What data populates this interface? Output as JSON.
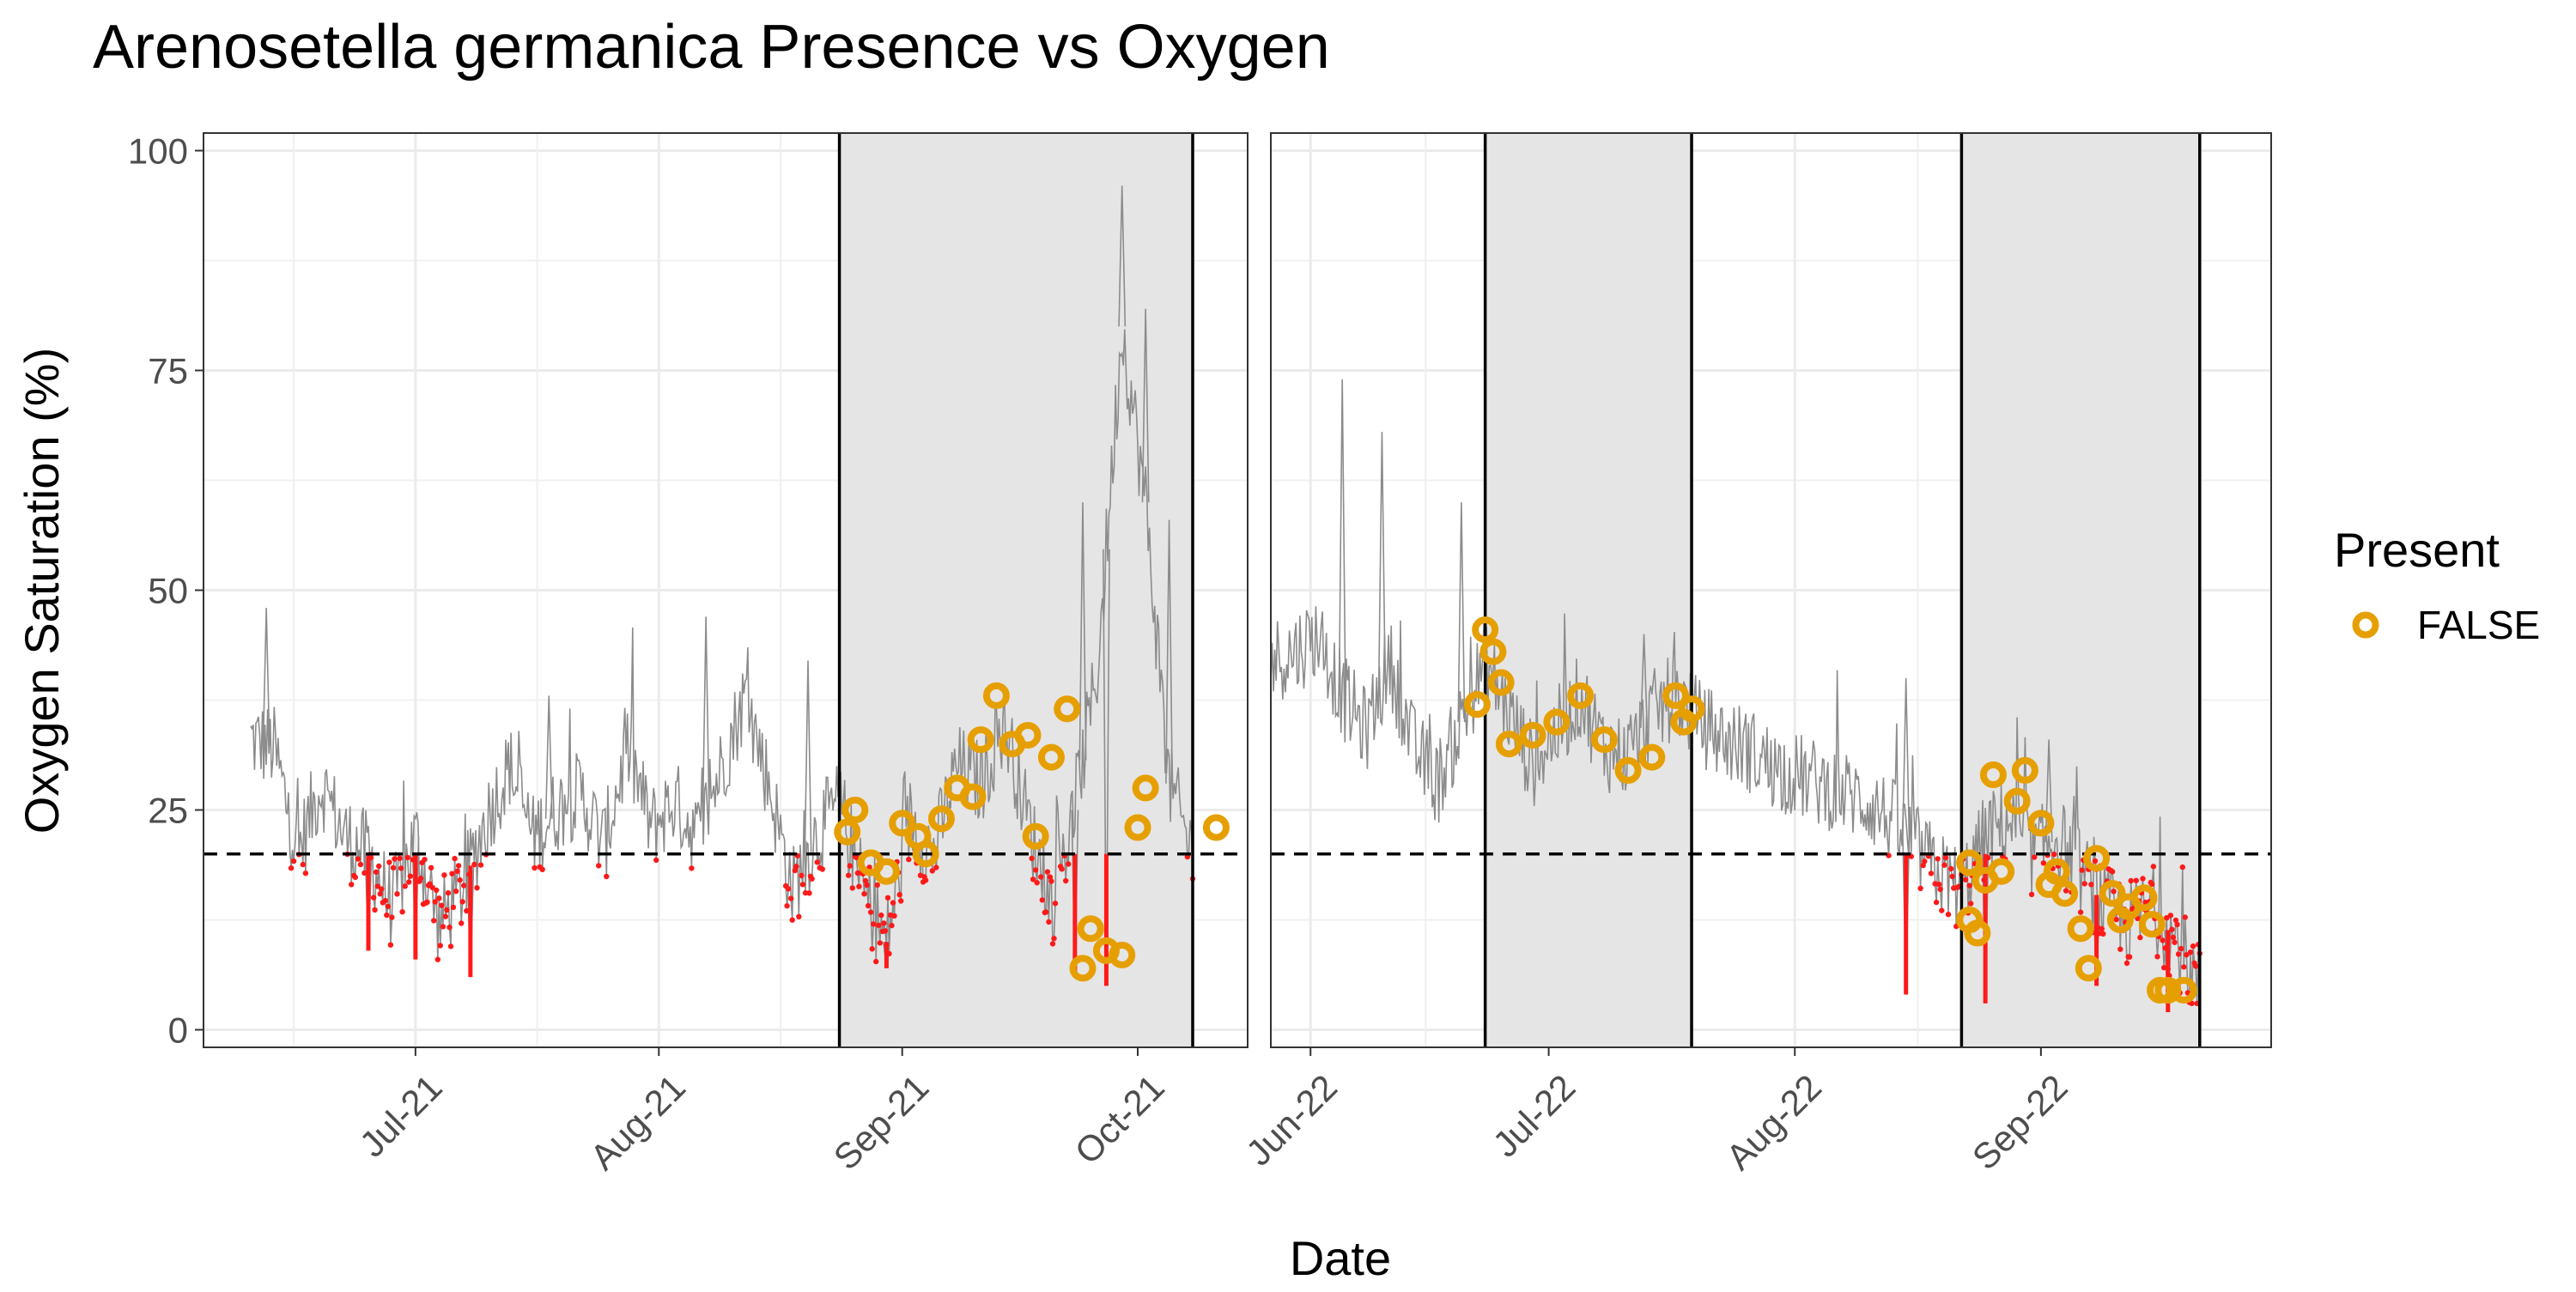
{
  "chart_data": {
    "type": "line",
    "title": "Arenosetella germanica Presence vs Oxygen",
    "xlabel": "Date",
    "ylabel": "Oxygen Saturation (%)",
    "ylim": [
      -2,
      102
    ],
    "y_ticks": [
      0,
      25,
      50,
      75,
      100
    ],
    "threshold": 20,
    "grid": true,
    "colors": {
      "line": "#8c8c8c",
      "below_threshold": "#ff1a1a",
      "points": "#e69f00",
      "shade": "#e5e5e5",
      "threshold_line": "#000000"
    },
    "legend": {
      "title": "Present",
      "position": "right",
      "entries": [
        {
          "label": "FALSE",
          "color": "#e69f00"
        }
      ]
    },
    "panels": [
      {
        "xlim": [
          "2021-06-04",
          "2021-10-15"
        ],
        "x_ticks": [
          "2021-07-01",
          "2021-08-01",
          "2021-09-01",
          "2021-10-01"
        ],
        "x_tick_labels": [
          "Jul-21",
          "Aug-21",
          "Sep-21",
          "Oct-21"
        ],
        "shaded": [
          [
            "2021-08-24",
            "2021-10-08"
          ]
        ],
        "series": {
          "x": [
            "2021-06-10",
            "2021-06-13",
            "2021-06-16",
            "2021-06-19",
            "2021-06-22",
            "2021-06-25",
            "2021-06-28",
            "2021-07-01",
            "2021-07-04",
            "2021-07-07",
            "2021-07-10",
            "2021-07-13",
            "2021-07-16",
            "2021-07-19",
            "2021-07-22",
            "2021-07-25",
            "2021-07-28",
            "2021-07-31",
            "2021-08-03",
            "2021-08-06",
            "2021-08-09",
            "2021-08-12",
            "2021-08-15",
            "2021-08-18",
            "2021-08-21",
            "2021-08-24",
            "2021-08-27",
            "2021-08-30",
            "2021-09-02",
            "2021-09-05",
            "2021-09-08",
            "2021-09-11",
            "2021-09-14",
            "2021-09-17",
            "2021-09-20",
            "2021-09-23",
            "2021-09-26",
            "2021-09-29",
            "2021-10-02",
            "2021-10-05",
            "2021-10-08"
          ],
          "y": [
            33,
            32,
            20,
            28,
            22,
            20,
            14,
            22,
            12,
            16,
            24,
            30,
            22,
            25,
            27,
            21,
            32,
            23,
            26,
            22,
            30,
            38,
            28,
            16,
            22,
            26,
            16,
            10,
            24,
            20,
            30,
            28,
            35,
            24,
            14,
            25,
            42,
            80,
            60,
            28,
            20
          ],
          "peaks": [
            [
              "2021-06-12",
              48
            ],
            [
              "2021-07-18",
              38
            ],
            [
              "2021-08-07",
              47
            ],
            [
              "2021-08-20",
              42
            ],
            [
              "2021-09-24",
              60
            ],
            [
              "2021-09-29",
              96
            ],
            [
              "2021-10-02",
              82
            ],
            [
              "2021-10-05",
              58
            ]
          ],
          "dips": [
            [
              "2021-06-25",
              9
            ],
            [
              "2021-07-01",
              8
            ],
            [
              "2021-07-08",
              6
            ],
            [
              "2021-08-30",
              7
            ],
            [
              "2021-09-23",
              6
            ],
            [
              "2021-09-27",
              5
            ]
          ]
        },
        "points": [
          {
            "x": "2021-08-25",
            "y": 22.5
          },
          {
            "x": "2021-08-26",
            "y": 25
          },
          {
            "x": "2021-08-28",
            "y": 19
          },
          {
            "x": "2021-08-30",
            "y": 18
          },
          {
            "x": "2021-09-01",
            "y": 23.5
          },
          {
            "x": "2021-09-03",
            "y": 22
          },
          {
            "x": "2021-09-04",
            "y": 20
          },
          {
            "x": "2021-09-06",
            "y": 24
          },
          {
            "x": "2021-09-08",
            "y": 27.5
          },
          {
            "x": "2021-09-10",
            "y": 26.5
          },
          {
            "x": "2021-09-11",
            "y": 33
          },
          {
            "x": "2021-09-13",
            "y": 38
          },
          {
            "x": "2021-09-15",
            "y": 32.5
          },
          {
            "x": "2021-09-17",
            "y": 33.5
          },
          {
            "x": "2021-09-18",
            "y": 22
          },
          {
            "x": "2021-09-20",
            "y": 31
          },
          {
            "x": "2021-09-22",
            "y": 36.5
          },
          {
            "x": "2021-09-24",
            "y": 7
          },
          {
            "x": "2021-09-25",
            "y": 11.5
          },
          {
            "x": "2021-09-27",
            "y": 9
          },
          {
            "x": "2021-09-29",
            "y": 8.5
          },
          {
            "x": "2021-10-01",
            "y": 23
          },
          {
            "x": "2021-10-02",
            "y": 27.5
          },
          {
            "x": "2021-10-11",
            "y": 23
          }
        ]
      },
      {
        "xlim": [
          "2022-05-27",
          "2022-09-30"
        ],
        "x_ticks": [
          "2022-06-01",
          "2022-07-01",
          "2022-08-01",
          "2022-09-01"
        ],
        "x_tick_labels": [
          "Jun-22",
          "Jul-22",
          "Aug-22",
          "Sep-22"
        ],
        "shaded": [
          [
            "2022-06-23",
            "2022-07-19"
          ],
          [
            "2022-08-22",
            "2022-09-21"
          ]
        ],
        "series": {
          "x": [
            "2022-05-27",
            "2022-05-30",
            "2022-06-02",
            "2022-06-05",
            "2022-06-08",
            "2022-06-11",
            "2022-06-14",
            "2022-06-17",
            "2022-06-20",
            "2022-06-23",
            "2022-06-26",
            "2022-06-29",
            "2022-07-02",
            "2022-07-05",
            "2022-07-08",
            "2022-07-11",
            "2022-07-14",
            "2022-07-17",
            "2022-07-20",
            "2022-07-23",
            "2022-07-26",
            "2022-07-29",
            "2022-08-01",
            "2022-08-04",
            "2022-08-07",
            "2022-08-10",
            "2022-08-13",
            "2022-08-16",
            "2022-08-19",
            "2022-08-22",
            "2022-08-25",
            "2022-08-28",
            "2022-08-31",
            "2022-09-03",
            "2022-09-06",
            "2022-09-09",
            "2022-09-12",
            "2022-09-15",
            "2022-09-18",
            "2022-09-21"
          ],
          "y": [
            42,
            43,
            45,
            38,
            34,
            42,
            32,
            28,
            35,
            42,
            36,
            30,
            34,
            38,
            32,
            31,
            36,
            38,
            35,
            33,
            32,
            30,
            29,
            28,
            27,
            26,
            24,
            21,
            18,
            16,
            22,
            24,
            20,
            22,
            18,
            14,
            12,
            14,
            10,
            5
          ],
          "peaks": [
            [
              "2022-06-05",
              74
            ],
            [
              "2022-06-10",
              68
            ],
            [
              "2022-06-20",
              60
            ],
            [
              "2022-07-13",
              45
            ],
            [
              "2022-08-15",
              40
            ],
            [
              "2022-09-02",
              33
            ]
          ],
          "dips": [
            [
              "2022-08-15",
              4
            ],
            [
              "2022-08-25",
              3
            ],
            [
              "2022-09-17",
              2
            ],
            [
              "2022-09-08",
              5
            ]
          ]
        },
        "points": [
          {
            "x": "2022-06-22",
            "y": 37
          },
          {
            "x": "2022-06-23",
            "y": 45.5
          },
          {
            "x": "2022-06-24",
            "y": 43
          },
          {
            "x": "2022-06-25",
            "y": 39.5
          },
          {
            "x": "2022-06-26",
            "y": 32.5
          },
          {
            "x": "2022-06-29",
            "y": 33.5
          },
          {
            "x": "2022-07-02",
            "y": 35
          },
          {
            "x": "2022-07-05",
            "y": 38
          },
          {
            "x": "2022-07-08",
            "y": 33
          },
          {
            "x": "2022-07-11",
            "y": 29.5
          },
          {
            "x": "2022-07-14",
            "y": 31
          },
          {
            "x": "2022-07-17",
            "y": 38
          },
          {
            "x": "2022-07-18",
            "y": 35
          },
          {
            "x": "2022-07-19",
            "y": 36.5
          },
          {
            "x": "2022-08-23",
            "y": 19
          },
          {
            "x": "2022-08-23",
            "y": 12.5
          },
          {
            "x": "2022-08-24",
            "y": 11
          },
          {
            "x": "2022-08-25",
            "y": 17
          },
          {
            "x": "2022-08-26",
            "y": 29
          },
          {
            "x": "2022-08-27",
            "y": 18
          },
          {
            "x": "2022-08-29",
            "y": 26
          },
          {
            "x": "2022-08-30",
            "y": 29.5
          },
          {
            "x": "2022-09-01",
            "y": 23.5
          },
          {
            "x": "2022-09-02",
            "y": 16.5
          },
          {
            "x": "2022-09-03",
            "y": 18
          },
          {
            "x": "2022-09-04",
            "y": 15.5
          },
          {
            "x": "2022-09-06",
            "y": 11.5
          },
          {
            "x": "2022-09-07",
            "y": 7
          },
          {
            "x": "2022-09-08",
            "y": 19.5
          },
          {
            "x": "2022-09-10",
            "y": 15.5
          },
          {
            "x": "2022-09-11",
            "y": 12.5
          },
          {
            "x": "2022-09-12",
            "y": 14
          },
          {
            "x": "2022-09-14",
            "y": 15
          },
          {
            "x": "2022-09-15",
            "y": 12
          },
          {
            "x": "2022-09-16",
            "y": 4.5
          },
          {
            "x": "2022-09-17",
            "y": 4.5
          },
          {
            "x": "2022-09-19",
            "y": 4.5
          }
        ]
      }
    ]
  }
}
